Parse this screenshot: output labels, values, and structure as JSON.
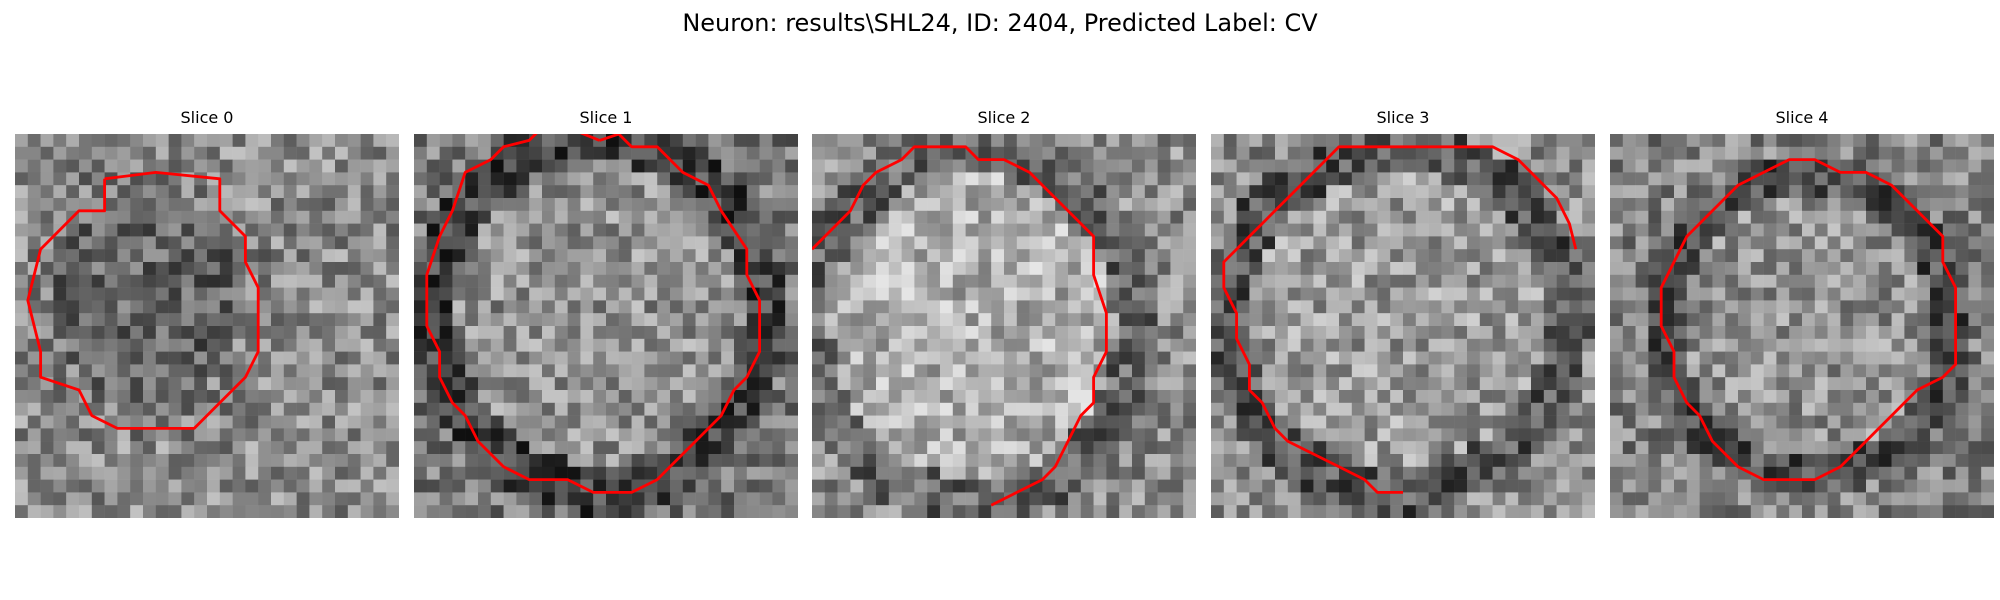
{
  "figure": {
    "title": "Neuron: results\\SHL24, ID: 2404, Predicted Label: CV"
  },
  "panels": [
    {
      "title": "Slice 0",
      "contour_color": "#ff0000",
      "contour": [
        [
          7,
          3.5
        ],
        [
          7,
          6
        ],
        [
          5,
          6
        ],
        [
          2,
          9
        ],
        [
          1,
          13
        ],
        [
          2,
          17
        ],
        [
          2,
          19
        ],
        [
          5,
          20
        ],
        [
          6,
          22
        ],
        [
          8,
          23
        ],
        [
          14,
          23
        ],
        [
          16,
          21
        ],
        [
          18,
          19
        ],
        [
          19,
          17
        ],
        [
          19,
          12
        ],
        [
          18,
          10
        ],
        [
          18,
          8
        ],
        [
          16,
          6
        ],
        [
          16,
          3.5
        ],
        [
          11,
          3
        ],
        [
          7,
          3.5
        ]
      ]
    },
    {
      "title": "Slice 1",
      "contour_color": "#ff0000",
      "contour": [
        [
          14.5,
          0.5
        ],
        [
          12,
          -0.5
        ],
        [
          10,
          -0.5
        ],
        [
          9,
          0.5
        ],
        [
          7,
          1
        ],
        [
          6,
          2
        ],
        [
          4,
          3
        ],
        [
          3,
          6
        ],
        [
          2,
          8
        ],
        [
          1,
          11
        ],
        [
          1,
          15
        ],
        [
          2,
          17
        ],
        [
          2,
          19
        ],
        [
          3,
          21
        ],
        [
          4,
          22
        ],
        [
          5,
          24
        ],
        [
          7,
          26
        ],
        [
          9,
          27
        ],
        [
          12,
          27
        ],
        [
          14,
          28
        ],
        [
          17,
          28
        ],
        [
          19,
          27
        ],
        [
          20,
          26
        ],
        [
          22,
          24
        ],
        [
          24,
          22
        ],
        [
          25,
          20
        ],
        [
          26,
          19
        ],
        [
          27,
          17
        ],
        [
          27,
          13
        ],
        [
          26,
          11
        ],
        [
          26,
          9
        ],
        [
          24,
          6
        ],
        [
          23,
          4
        ],
        [
          21,
          3
        ],
        [
          19,
          1
        ],
        [
          17,
          1
        ],
        [
          16,
          0
        ],
        [
          14.5,
          0.5
        ]
      ]
    },
    {
      "title": "Slice 2",
      "contour_color": "#ff0000",
      "contour": [
        [
          0,
          9
        ],
        [
          2,
          7
        ],
        [
          3,
          6
        ],
        [
          4,
          4
        ],
        [
          5,
          3
        ],
        [
          7,
          2
        ],
        [
          8,
          1
        ],
        [
          10,
          1
        ],
        [
          12,
          1
        ],
        [
          13,
          2
        ],
        [
          15,
          2
        ],
        [
          17,
          3
        ],
        [
          18,
          4
        ],
        [
          19,
          5
        ],
        [
          20,
          6
        ],
        [
          21,
          7
        ],
        [
          22,
          8
        ],
        [
          22,
          11
        ],
        [
          23,
          14
        ],
        [
          23,
          17
        ],
        [
          22,
          19
        ],
        [
          22,
          21
        ],
        [
          21,
          22
        ],
        [
          20,
          24
        ],
        [
          19,
          26
        ],
        [
          18,
          27
        ],
        [
          16,
          28
        ],
        [
          14,
          29
        ]
      ]
    },
    {
      "title": "Slice 3",
      "contour_color": "#ff0000",
      "contour": [
        [
          28.5,
          9
        ],
        [
          28,
          7
        ],
        [
          27,
          5
        ],
        [
          26,
          4
        ],
        [
          25,
          3
        ],
        [
          24,
          2
        ],
        [
          23,
          1.5
        ],
        [
          22,
          1
        ],
        [
          20,
          1
        ],
        [
          18,
          1
        ],
        [
          16,
          1
        ],
        [
          14,
          1
        ],
        [
          12,
          1
        ],
        [
          10,
          1
        ],
        [
          9,
          2
        ],
        [
          8,
          3
        ],
        [
          7,
          4
        ],
        [
          6,
          5
        ],
        [
          5,
          6
        ],
        [
          4,
          7
        ],
        [
          3,
          8
        ],
        [
          2,
          9
        ],
        [
          1,
          10
        ],
        [
          1,
          12
        ],
        [
          2,
          14
        ],
        [
          2,
          16
        ],
        [
          3,
          18
        ],
        [
          3,
          20
        ],
        [
          4,
          21
        ],
        [
          5,
          23
        ],
        [
          6,
          24
        ],
        [
          8,
          25
        ],
        [
          10,
          26
        ],
        [
          12,
          27
        ],
        [
          13,
          28
        ],
        [
          15,
          28
        ]
      ]
    },
    {
      "title": "Slice 4",
      "contour_color": "#ff0000",
      "contour": [
        [
          12,
          3
        ],
        [
          10,
          4
        ],
        [
          9,
          5
        ],
        [
          8,
          6
        ],
        [
          7,
          7
        ],
        [
          6,
          8
        ],
        [
          5,
          10
        ],
        [
          4,
          12
        ],
        [
          4,
          15
        ],
        [
          5,
          17
        ],
        [
          5,
          19
        ],
        [
          6,
          21
        ],
        [
          7,
          22
        ],
        [
          8,
          24
        ],
        [
          9,
          25
        ],
        [
          10,
          26
        ],
        [
          12,
          27
        ],
        [
          16,
          27
        ],
        [
          18,
          26
        ],
        [
          19,
          25
        ],
        [
          20,
          24
        ],
        [
          21,
          23
        ],
        [
          22,
          22
        ],
        [
          23,
          21
        ],
        [
          24,
          20
        ],
        [
          26,
          19
        ],
        [
          27,
          18
        ],
        [
          27,
          16
        ],
        [
          27,
          14
        ],
        [
          27,
          12
        ],
        [
          26,
          10
        ],
        [
          26,
          8
        ],
        [
          25,
          7
        ],
        [
          24,
          6
        ],
        [
          23,
          5
        ],
        [
          22,
          4
        ],
        [
          21,
          3.5
        ],
        [
          20,
          3
        ],
        [
          18,
          3
        ],
        [
          16,
          2
        ],
        [
          14,
          2
        ],
        [
          12,
          3
        ]
      ]
    }
  ]
}
